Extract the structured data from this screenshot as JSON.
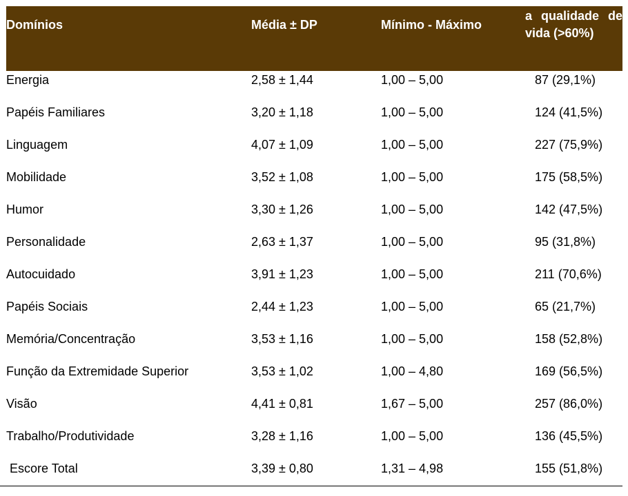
{
  "table": {
    "headers": {
      "dominios": "Domínios",
      "media_dp": "Média ± DP",
      "min_max": "Mínimo - Máximo",
      "qualidade": "a qualidade de vida (>60%)"
    },
    "rows": [
      {
        "dominio": "Energia",
        "media": "2,58 ± 1,44",
        "range": "1,00 – 5,00",
        "qv": "87 (29,1%)"
      },
      {
        "dominio": "Papéis Familiares",
        "media": "3,20 ± 1,18",
        "range": "1,00 – 5,00",
        "qv": "124 (41,5%)"
      },
      {
        "dominio": "Linguagem",
        "media": "4,07 ± 1,09",
        "range": "1,00 – 5,00",
        "qv": "227 (75,9%)"
      },
      {
        "dominio": "Mobilidade",
        "media": "3,52 ± 1,08",
        "range": "1,00 – 5,00",
        "qv": "175 (58,5%)"
      },
      {
        "dominio": "Humor",
        "media": "3,30 ± 1,26",
        "range": "1,00 – 5,00",
        "qv": "142 (47,5%)"
      },
      {
        "dominio": "Personalidade",
        "media": "2,63 ± 1,37",
        "range": "1,00 – 5,00",
        "qv": "95 (31,8%)"
      },
      {
        "dominio": "Autocuidado",
        "media": "3,91 ± 1,23",
        "range": "1,00 – 5,00",
        "qv": "211 (70,6%)"
      },
      {
        "dominio": "Papéis Sociais",
        "media": "2,44 ± 1,23",
        "range": "1,00 – 5,00",
        "qv": "65 (21,7%)"
      },
      {
        "dominio": "Memória/Concentração",
        "media": "3,53 ± 1,16",
        "range": "1,00 – 5,00",
        "qv": "158 (52,8%)"
      },
      {
        "dominio": "Função da Extremidade Superior",
        "media": "3,53 ± 1,02",
        "range": "1,00 – 4,80",
        "qv": "169 (56,5%)"
      },
      {
        "dominio": "Visão",
        "media": "4,41 ± 0,81",
        "range": "1,67 – 5,00",
        "qv": "257 (86,0%)"
      },
      {
        "dominio": "Trabalho/Produtividade",
        "media": "3,28 ± 1,16",
        "range": "1,00 – 5,00",
        "qv": "136 (45,5%)"
      },
      {
        "dominio": " Escore Total",
        "media": "3,39 ± 0,80",
        "range": "1,31 – 4,98",
        "qv": "155 (51,8%)"
      }
    ]
  }
}
